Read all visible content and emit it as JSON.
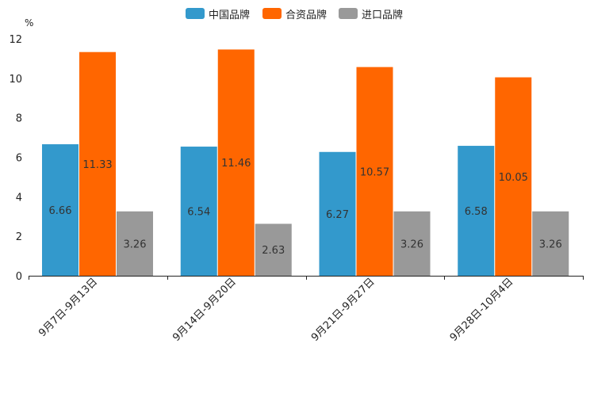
{
  "chart_data": {
    "type": "bar",
    "title": "",
    "xlabel": "",
    "ylabel": "",
    "y_unit": "%",
    "ylim": [
      0,
      12
    ],
    "yticks": [
      0,
      2,
      4,
      6,
      8,
      10,
      12
    ],
    "categories": [
      "9月7日-9月13日",
      "9月14日-9月20日",
      "9月21日-9月27日",
      "9月28日-10月4日"
    ],
    "series": [
      {
        "name": "中国品牌",
        "color": "#3399cc",
        "values": [
          6.66,
          6.54,
          6.27,
          6.58
        ],
        "labels": [
          "6.66",
          "6.54",
          "6.27",
          "6.58"
        ]
      },
      {
        "name": "合资品牌",
        "color": "#ff6600",
        "values": [
          11.33,
          11.46,
          10.57,
          10.05
        ],
        "labels": [
          "11.33",
          "11.46",
          "10.57",
          "10.05"
        ]
      },
      {
        "name": "进口品牌",
        "color": "#999999",
        "values": [
          3.26,
          2.63,
          3.26,
          3.26
        ],
        "labels": [
          "3.26",
          "2.63",
          "3.26",
          "3.26"
        ]
      }
    ],
    "legend_position": "top-center",
    "grid": false
  }
}
